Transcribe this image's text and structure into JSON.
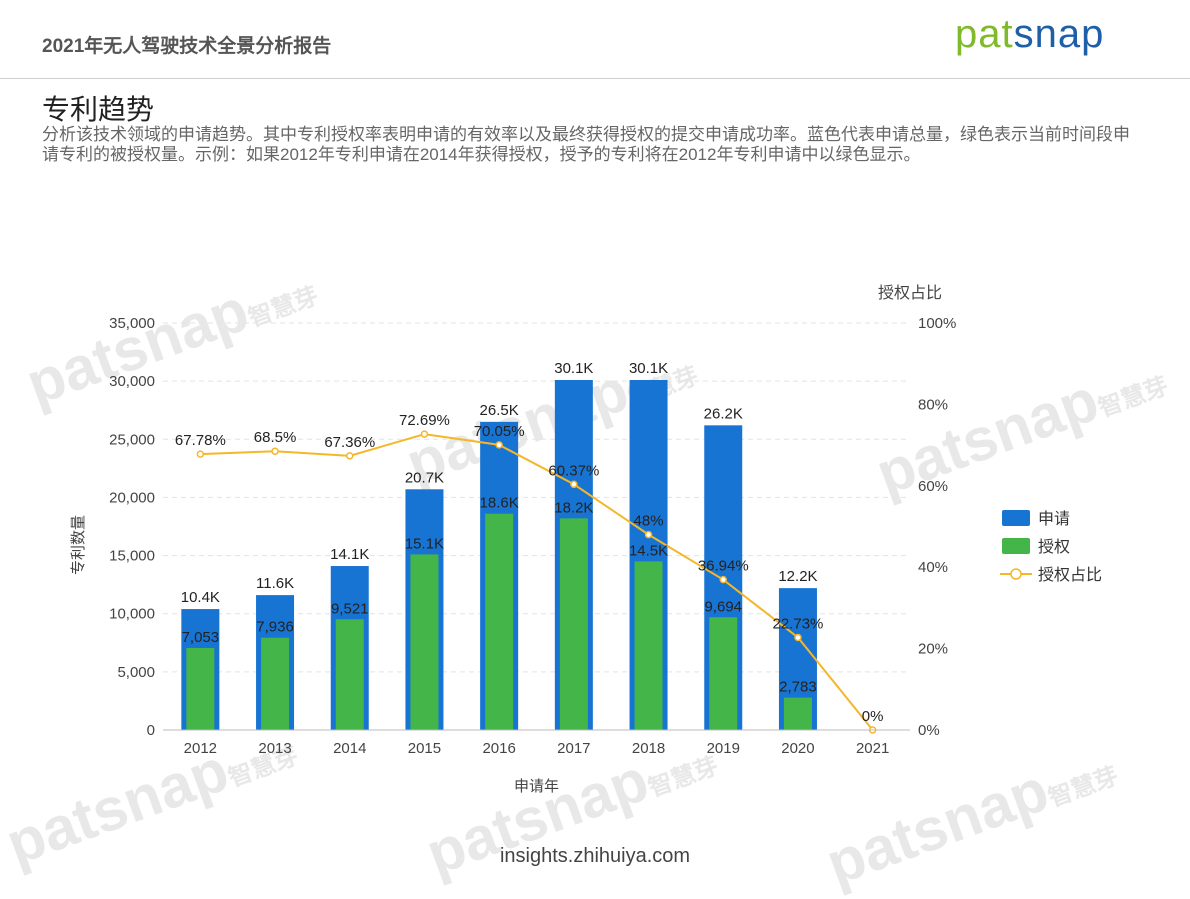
{
  "header": {
    "report_title": "2021年无人驾驶技术全景分析报告",
    "logo": "patsnap"
  },
  "section": {
    "title": "专利趋势",
    "description": "分析该技术领域的申请趋势。其中专利授权率表明申请的有效率以及最终获得授权的提交申请成功率。蓝色代表申请总量，绿色表示当前时间段申请专利的被授权量。示例：如果2012年专利申请在2014年获得授权，授予的专利将在2012年专利申请中以绿色显示。"
  },
  "watermark": {
    "brand": "patsnap",
    "cn": "智慧芽"
  },
  "footer": {
    "link": "insights.zhihuiya.com"
  },
  "chart_data": {
    "type": "bar",
    "categories": [
      "2012",
      "2013",
      "2014",
      "2015",
      "2016",
      "2017",
      "2018",
      "2019",
      "2020",
      "2021"
    ],
    "series": [
      {
        "name": "申请",
        "type": "bar",
        "color": "#1874d2",
        "values": [
          10400,
          11600,
          14100,
          20700,
          26500,
          30100,
          30100,
          26200,
          12200,
          0
        ],
        "labels": [
          "10.4K",
          "11.6K",
          "14.1K",
          "20.7K",
          "26.5K",
          "30.1K",
          "30.1K",
          "26.2K",
          "12.2K",
          ""
        ]
      },
      {
        "name": "授权",
        "type": "bar",
        "color": "#44b549",
        "values": [
          7053,
          7936,
          9521,
          15100,
          18600,
          18200,
          14500,
          9694,
          2783,
          0
        ],
        "labels": [
          "7,053",
          "7,936",
          "9,521",
          "15.1K",
          "18.6K",
          "18.2K",
          "14.5K",
          "9,694",
          "2,783",
          ""
        ]
      },
      {
        "name": "授权占比",
        "type": "line",
        "axis": "right",
        "color": "#f5b62a",
        "values": [
          67.78,
          68.5,
          67.36,
          72.69,
          70.05,
          60.37,
          48,
          36.94,
          22.73,
          0
        ],
        "labels": [
          "67.78%",
          "68.5%",
          "67.36%",
          "72.69%",
          "70.05%",
          "60.37%",
          "48%",
          "36.94%",
          "22.73%",
          "0%"
        ]
      }
    ],
    "xlabel": "申请年",
    "ylabel": "专利数量",
    "y2label": "授权占比",
    "ylim": [
      0,
      35000
    ],
    "y2lim": [
      0,
      100
    ],
    "yticks": [
      "0",
      "5,000",
      "10,000",
      "15,000",
      "20,000",
      "25,000",
      "30,000",
      "35,000"
    ],
    "y2ticks": [
      "0%",
      "20%",
      "40%",
      "60%",
      "80%",
      "100%"
    ],
    "grid": true,
    "legend": "right"
  }
}
